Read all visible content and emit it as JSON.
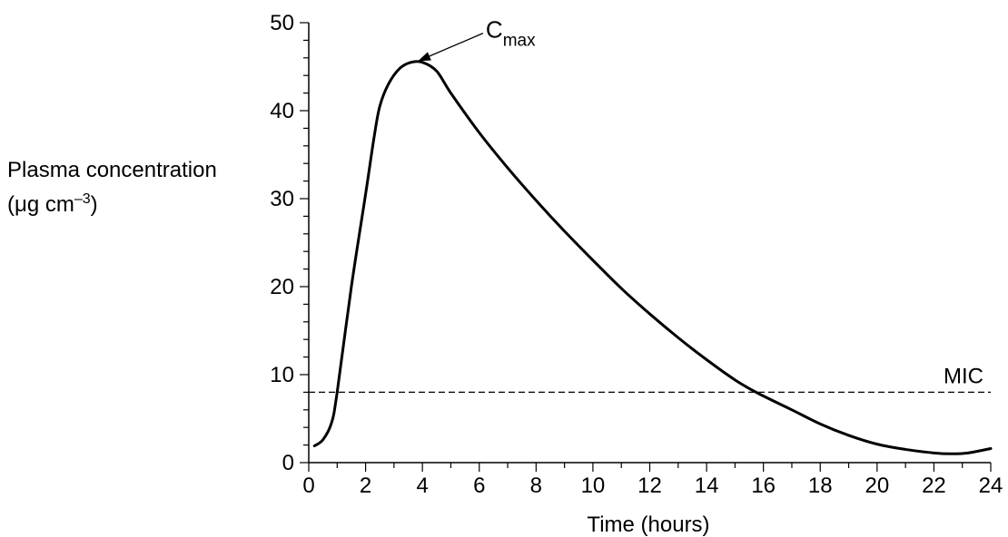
{
  "chart_data": {
    "type": "line",
    "xlabel": "Time (hours)",
    "ylabel_line1": "Plasma concentration",
    "ylabel_line2_prefix": "(μg cm",
    "ylabel_line2_exp": "–3",
    "ylabel_line2_suffix": ")",
    "xlim": [
      0,
      24
    ],
    "ylim": [
      0,
      50
    ],
    "x_ticks": [
      0,
      2,
      4,
      6,
      8,
      10,
      12,
      14,
      16,
      18,
      20,
      22,
      24
    ],
    "y_ticks": [
      0,
      10,
      20,
      30,
      40,
      50
    ],
    "grid": false,
    "series": [
      {
        "x": [
          0.2,
          0.5,
          0.8,
          1.0,
          1.5,
          2.0,
          2.3,
          2.5,
          2.8,
          3.2,
          3.6,
          4.0,
          4.5,
          5.0,
          6.0,
          7.0,
          8.0,
          9.0,
          10.0,
          11.0,
          12.0,
          13.0,
          14.0,
          15.0,
          15.8,
          17.0,
          18.0,
          19.0,
          20.0,
          21.0,
          22.0,
          22.6,
          23.2,
          24.0
        ],
        "y": [
          1.9,
          2.6,
          4.5,
          8.0,
          20.0,
          30.5,
          37.0,
          40.5,
          43.0,
          44.8,
          45.5,
          45.5,
          44.5,
          42.0,
          37.5,
          33.5,
          29.8,
          26.3,
          23.0,
          19.8,
          16.9,
          14.2,
          11.7,
          9.4,
          7.9,
          6.0,
          4.4,
          3.1,
          2.1,
          1.5,
          1.1,
          1.0,
          1.1,
          1.6
        ]
      }
    ],
    "reference_line": {
      "label": "MIC",
      "y": 8.0,
      "style": "dashed"
    },
    "annotation": {
      "label_main": "C",
      "label_sub": "max",
      "x": 3.8,
      "y": 45.5
    }
  }
}
